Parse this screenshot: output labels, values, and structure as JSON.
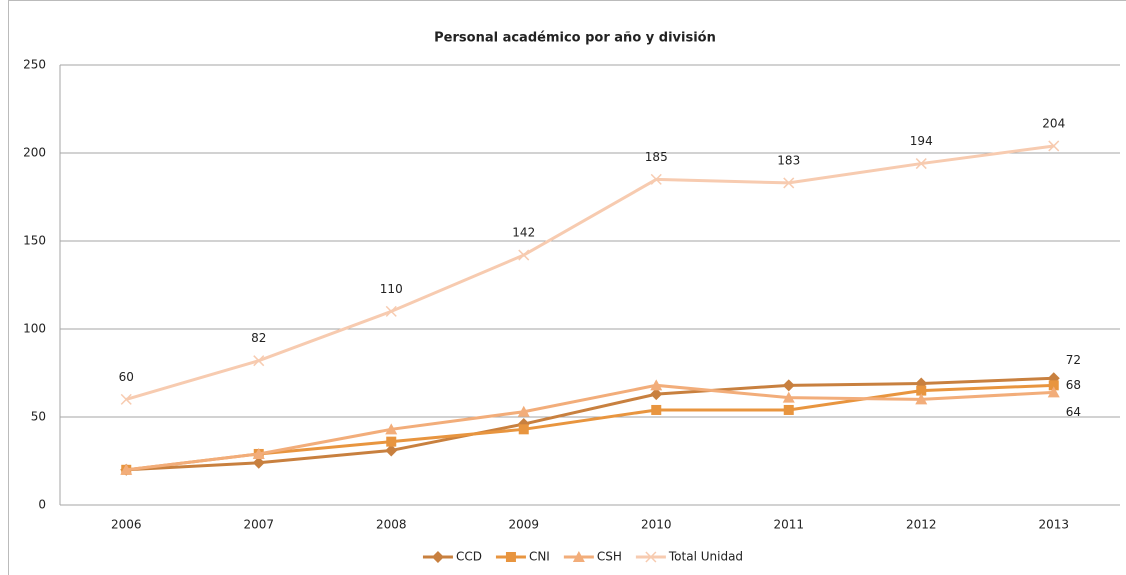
{
  "chart_data": {
    "type": "line",
    "title": "Personal académico por año y división",
    "categories": [
      "2006",
      "2007",
      "2008",
      "2009",
      "2010",
      "2011",
      "2012",
      "2013"
    ],
    "series": [
      {
        "name": "CCD",
        "color": "#c8803f",
        "marker": "diamond",
        "labels": "last",
        "label_position": "above-right",
        "values": [
          20,
          24,
          31,
          46,
          63,
          68,
          69,
          72
        ]
      },
      {
        "name": "CNI",
        "color": "#e8953f",
        "marker": "square",
        "labels": "last",
        "label_position": "right",
        "values": [
          20,
          29,
          36,
          43,
          54,
          54,
          65,
          68
        ]
      },
      {
        "name": "CSH",
        "color": "#f2ad7a",
        "marker": "triangle",
        "labels": "last",
        "label_position": "below-right",
        "values": [
          20,
          29,
          43,
          53,
          68,
          61,
          60,
          64
        ]
      },
      {
        "name": "Total Unidad",
        "color": "#f7cbb0",
        "marker": "x",
        "labels": "all",
        "label_position": "above",
        "values": [
          60,
          82,
          110,
          142,
          185,
          183,
          194,
          204
        ]
      }
    ],
    "ylim": [
      0,
      250
    ],
    "yticks": [
      0,
      50,
      100,
      150,
      200,
      250
    ],
    "grid": true,
    "legend": "bottom"
  }
}
